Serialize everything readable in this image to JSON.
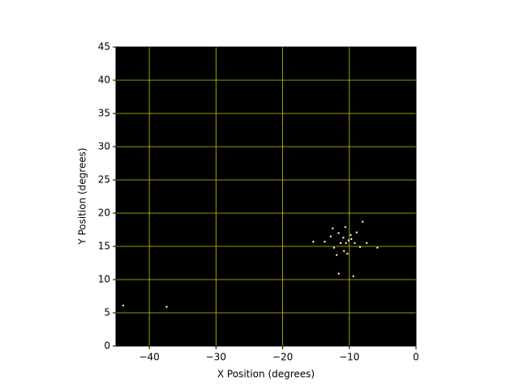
{
  "chart_data": {
    "type": "scatter",
    "x_label": "X Position (degrees)",
    "y_label": "Y Position (degrees)",
    "xlim": [
      -45,
      0
    ],
    "xticks": [
      {
        "value": -40,
        "label": "−40"
      },
      {
        "value": -30,
        "label": "−30"
      },
      {
        "value": -20,
        "label": "−20"
      },
      {
        "value": -10,
        "label": "−10"
      },
      0
    ],
    "ylim": [
      0,
      45
    ],
    "yticks": [
      0,
      5,
      10,
      15,
      20,
      25,
      30,
      35,
      40,
      45
    ],
    "grid": true,
    "grid_color": "#c8c800",
    "background": "#000000",
    "series": [
      {
        "color": "#fff3c4",
        "x": [
          -37.4,
          -43.9,
          -10.1,
          -10.9,
          -10.6,
          -8.0,
          -5.8,
          -9.4,
          -12.5,
          -13.7,
          -15.4,
          -11.6,
          -9.8,
          -9.2,
          -10.8,
          -11.9,
          -10.3,
          -11.6,
          -8.9,
          -7.4,
          -11.3,
          -12.3,
          -10.5,
          -9.7,
          -12.8,
          -8.4
        ],
        "values": [
          5.9,
          6.1,
          15.9,
          16.3,
          17.9,
          18.7,
          14.8,
          10.5,
          17.7,
          15.7,
          15.7,
          17.0,
          16.7,
          15.5,
          14.3,
          13.7,
          13.9,
          10.9,
          17.1,
          15.5,
          15.5,
          14.8,
          15.5,
          16.1,
          16.5,
          14.9
        ]
      }
    ]
  }
}
